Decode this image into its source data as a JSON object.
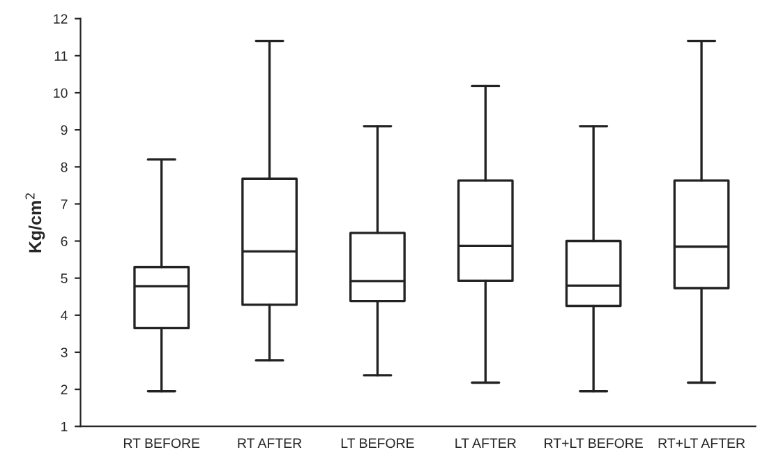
{
  "chart_data": {
    "type": "box",
    "ylabel": "Kg/cm$^{2}$",
    "categories": [
      "RT BEFORE",
      "RT AFTER",
      "LT BEFORE",
      "LT AFTER",
      "RT+LT BEFORE",
      "RT+LT AFTER"
    ],
    "boxes": [
      {
        "low": 1.95,
        "q1": 3.65,
        "median": 4.78,
        "q3": 5.3,
        "high": 8.2
      },
      {
        "low": 2.78,
        "q1": 4.28,
        "median": 5.72,
        "q3": 7.68,
        "high": 11.4
      },
      {
        "low": 2.38,
        "q1": 4.38,
        "median": 4.92,
        "q3": 6.22,
        "high": 9.1
      },
      {
        "low": 2.18,
        "q1": 4.93,
        "median": 5.87,
        "q3": 7.63,
        "high": 10.18
      },
      {
        "low": 1.95,
        "q1": 4.25,
        "median": 4.8,
        "q3": 6.0,
        "high": 9.1
      },
      {
        "low": 2.18,
        "q1": 4.73,
        "median": 5.85,
        "q3": 7.63,
        "high": 11.4
      }
    ],
    "ylim": [
      1,
      12
    ],
    "yticks": [
      1,
      2,
      3,
      4,
      5,
      6,
      7,
      8,
      9,
      10,
      11,
      12
    ],
    "grid": false,
    "legend": false
  }
}
